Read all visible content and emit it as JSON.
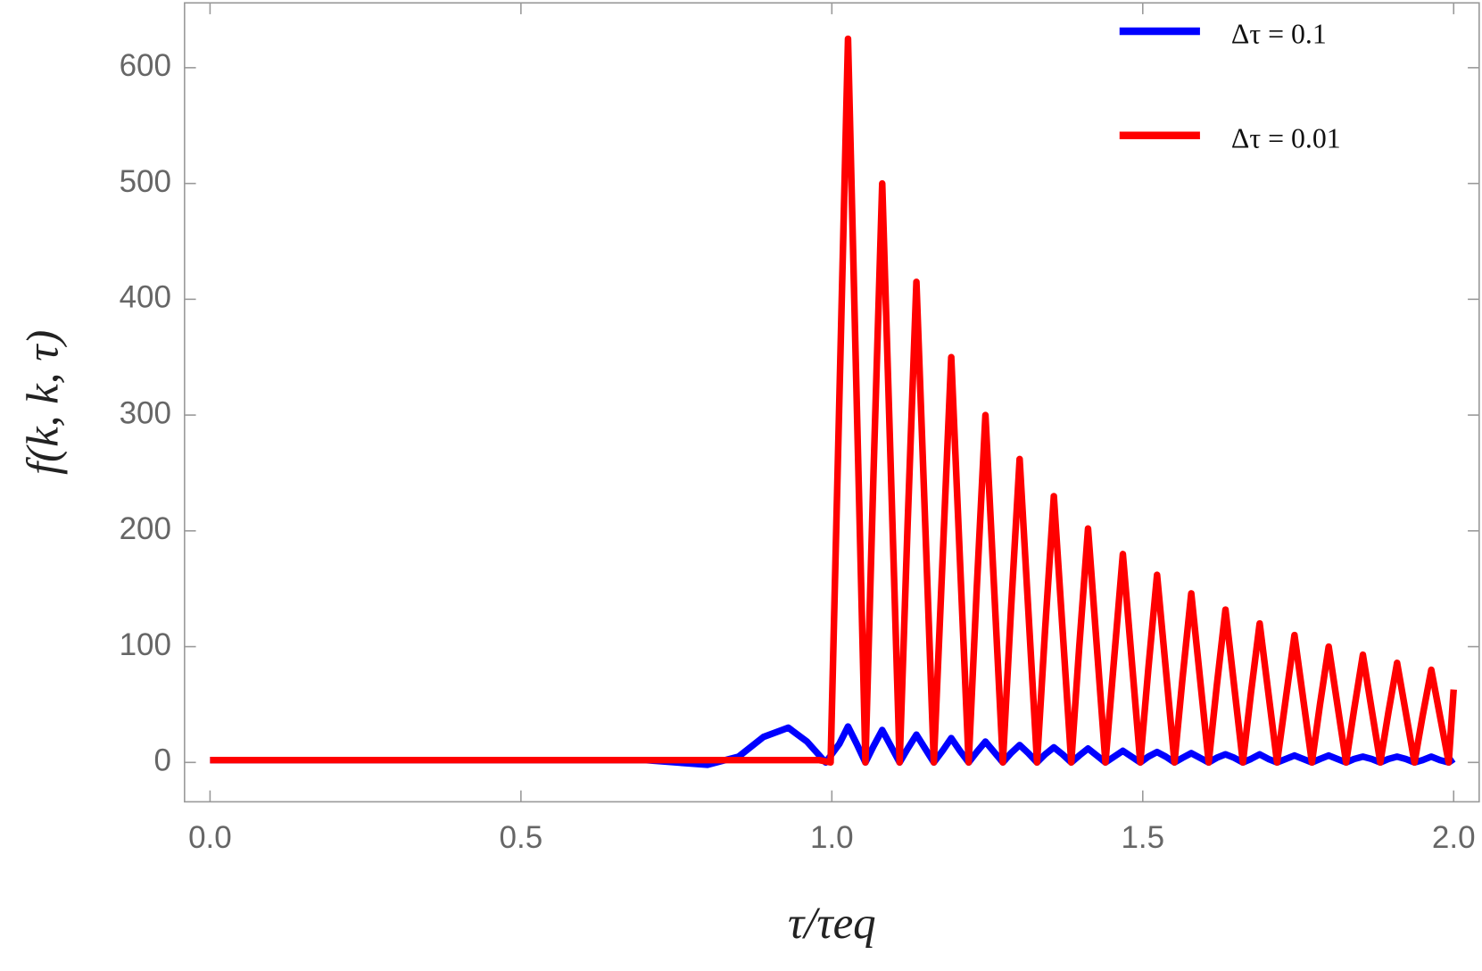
{
  "chart_data": {
    "type": "line",
    "x_label": "τ/τeq",
    "y_label": "f(k, k, τ)",
    "xlim": [
      -0.041,
      2.041
    ],
    "ylim": [
      -34,
      656
    ],
    "xticks": [
      {
        "value": 0,
        "label": "0.0"
      },
      0.5,
      {
        "value": 1,
        "label": "1.0"
      },
      1.5,
      {
        "value": 2,
        "label": "2.0"
      }
    ],
    "yticks": [
      0,
      100,
      200,
      300,
      400,
      500,
      600
    ],
    "grid": false,
    "legend": "upper right",
    "series": [
      {
        "name": "Δτ = 0.1",
        "color": "#0000ff",
        "x": [
          0,
          0.7,
          0.8,
          0.85,
          0.89,
          0.93,
          0.96,
          0.99,
          1.012,
          1.026,
          1.04,
          1.054,
          1.067,
          1.081,
          1.095,
          1.109,
          1.122,
          1.136,
          1.15,
          1.164,
          1.178,
          1.192,
          1.206,
          1.22,
          1.233,
          1.247,
          1.261,
          1.275,
          1.288,
          1.302,
          1.316,
          1.33,
          1.343,
          1.357,
          1.371,
          1.385,
          1.398,
          1.412,
          1.426,
          1.44,
          1.454,
          1.468,
          1.482,
          1.496,
          1.509,
          1.523,
          1.537,
          1.551,
          1.564,
          1.578,
          1.592,
          1.606,
          1.619,
          1.633,
          1.647,
          1.661,
          1.674,
          1.688,
          1.702,
          1.716,
          1.73,
          1.744,
          1.758,
          1.772,
          1.785,
          1.799,
          1.813,
          1.827,
          1.84,
          1.854,
          1.868,
          1.882,
          1.895,
          1.909,
          1.923,
          1.937,
          1.95,
          1.964,
          1.978,
          1.992,
          2.0
        ],
        "values": [
          2,
          2,
          -2,
          5,
          22,
          30,
          18,
          0,
          16,
          31,
          16,
          0,
          14,
          28,
          14,
          0,
          12,
          24,
          12,
          0,
          10,
          21,
          10,
          0,
          9,
          18,
          9,
          0,
          8,
          15,
          8,
          0,
          7,
          13,
          7,
          0,
          6,
          12,
          6,
          0,
          5,
          10,
          5,
          0,
          5,
          9,
          5,
          0,
          4,
          8,
          4,
          0,
          4,
          7,
          4,
          0,
          3,
          7,
          3,
          0,
          3,
          6,
          3,
          0,
          3,
          6,
          3,
          0,
          3,
          5,
          3,
          0,
          3,
          5,
          3,
          0,
          2,
          5,
          2,
          0,
          3
        ]
      },
      {
        "name": "Δτ = 0.01",
        "color": "#ff0000",
        "x": [
          0,
          0.98,
          0.998,
          1.012,
          1.026,
          1.04,
          1.054,
          1.067,
          1.081,
          1.095,
          1.109,
          1.122,
          1.136,
          1.15,
          1.164,
          1.178,
          1.192,
          1.206,
          1.22,
          1.233,
          1.247,
          1.261,
          1.275,
          1.288,
          1.302,
          1.316,
          1.33,
          1.343,
          1.357,
          1.371,
          1.385,
          1.398,
          1.412,
          1.426,
          1.44,
          1.454,
          1.468,
          1.482,
          1.496,
          1.509,
          1.523,
          1.537,
          1.551,
          1.564,
          1.578,
          1.592,
          1.606,
          1.619,
          1.633,
          1.647,
          1.661,
          1.674,
          1.688,
          1.702,
          1.716,
          1.73,
          1.744,
          1.758,
          1.772,
          1.785,
          1.799,
          1.813,
          1.827,
          1.84,
          1.854,
          1.868,
          1.882,
          1.895,
          1.909,
          1.923,
          1.937,
          1.95,
          1.964,
          1.978,
          1.992,
          2.0
        ],
        "values": [
          2,
          2,
          0,
          312,
          625,
          312,
          0,
          250,
          500,
          250,
          0,
          208,
          415,
          208,
          0,
          175,
          350,
          175,
          0,
          150,
          300,
          150,
          0,
          131,
          262,
          131,
          0,
          115,
          230,
          115,
          0,
          101,
          202,
          101,
          0,
          90,
          180,
          90,
          0,
          81,
          162,
          81,
          0,
          73,
          146,
          73,
          0,
          66,
          132,
          66,
          0,
          60,
          120,
          60,
          0,
          55,
          110,
          55,
          0,
          50,
          100,
          50,
          0,
          46,
          93,
          46,
          0,
          43,
          86,
          43,
          0,
          40,
          80,
          40,
          0,
          63
        ]
      }
    ]
  }
}
